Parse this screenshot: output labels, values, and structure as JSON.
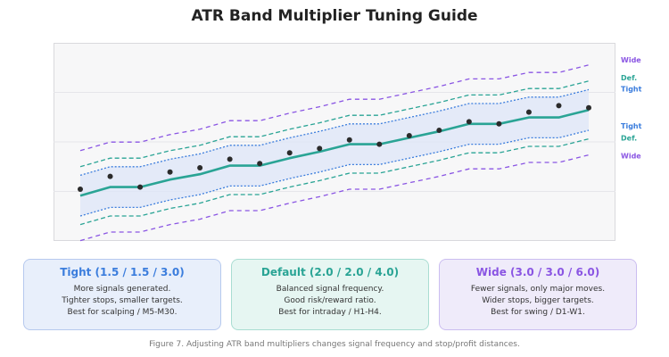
{
  "title": "ATR Band Multiplier Tuning Guide",
  "band_labels": {
    "upper": [
      "Wide",
      "Def.",
      "Tight"
    ],
    "lower": [
      "Tight",
      "Def.",
      "Wide"
    ]
  },
  "colors": {
    "tight": "#3b7ddd",
    "default": "#2aa495",
    "wide": "#8a55e3",
    "band_fill": "#dfe6f7",
    "center": "#2aa495",
    "points": "#2b2b2b"
  },
  "chart_data": {
    "type": "line",
    "x": [
      0,
      1,
      2,
      3,
      4,
      5,
      6,
      7,
      8,
      9,
      10,
      11,
      12,
      13,
      14,
      15,
      16,
      17
    ],
    "ylim": [
      0,
      100
    ],
    "center": [
      34,
      42,
      42,
      49,
      54,
      62,
      62,
      69,
      75,
      82,
      82,
      88,
      94,
      101,
      101,
      107,
      107,
      114
    ],
    "price": [
      40,
      52,
      42,
      56,
      60,
      68,
      64,
      74,
      78,
      86,
      82,
      90,
      95,
      103,
      101,
      112,
      118,
      116
    ],
    "offsets": {
      "tight": 19,
      "default": 27,
      "wide": 42
    },
    "series": [
      {
        "name": "Tight"
      },
      {
        "name": "Default"
      },
      {
        "name": "Wide"
      }
    ]
  },
  "cards": [
    {
      "key": "tight",
      "title": "Tight (1.5 / 1.5 / 3.0)",
      "lines": [
        "More signals generated.",
        "Tighter stops, smaller targets.",
        "Best for scalping / M5-M30."
      ]
    },
    {
      "key": "default",
      "title": "Default (2.0 / 2.0 / 4.0)",
      "lines": [
        "Balanced signal frequency.",
        "Good risk/reward ratio.",
        "Best for intraday / H1-H4."
      ]
    },
    {
      "key": "wide",
      "title": "Wide (3.0 / 3.0 / 6.0)",
      "lines": [
        "Fewer signals, only major moves.",
        "Wider stops, bigger targets.",
        "Best for swing / D1-W1."
      ]
    }
  ],
  "caption": "Figure 7. Adjusting ATR band multipliers changes signal frequency and stop/profit distances."
}
